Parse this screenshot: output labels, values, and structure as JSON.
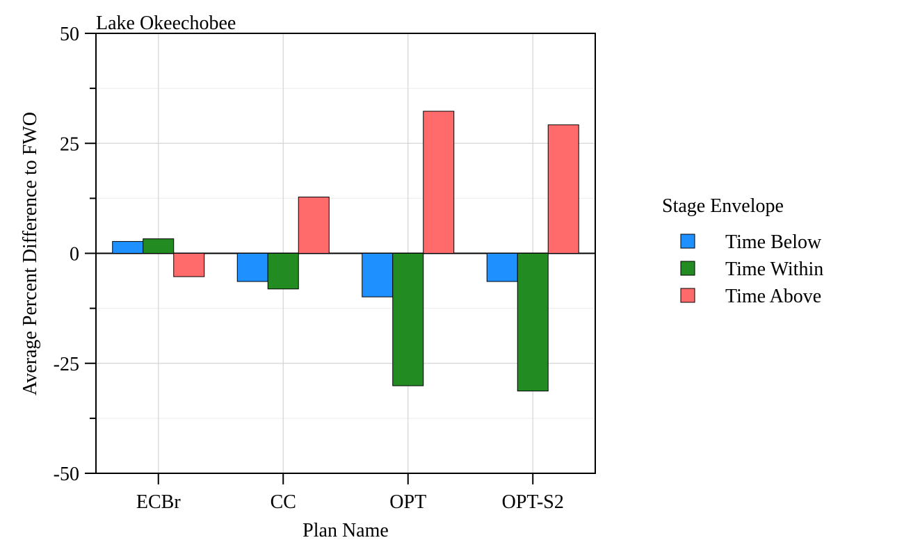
{
  "chart_data": {
    "type": "bar",
    "title": "Lake Okeechobee",
    "xlabel": "Plan Name",
    "ylabel": "Average Percent Difference to FWO",
    "categories": [
      "ECBr",
      "CC",
      "OPT",
      "OPT-S2"
    ],
    "series": [
      {
        "name": "Time Below",
        "color": "#1e90ff",
        "values": [
          2.7,
          -6.4,
          -9.9,
          -6.4
        ]
      },
      {
        "name": "Time Within",
        "color": "#228b22",
        "values": [
          3.3,
          -8.1,
          -30.1,
          -31.3
        ]
      },
      {
        "name": "Time Above",
        "color": "#ff6a6a",
        "values": [
          -5.3,
          12.8,
          32.3,
          29.2
        ]
      }
    ],
    "ylim": [
      -50,
      50
    ],
    "yticks": [
      50,
      25,
      0,
      -25,
      -50
    ],
    "ytick_labels": [
      "50",
      "25",
      "0",
      "-25",
      "-50"
    ],
    "grid": true,
    "legend": {
      "title": "Stage Envelope",
      "position": "right"
    }
  }
}
